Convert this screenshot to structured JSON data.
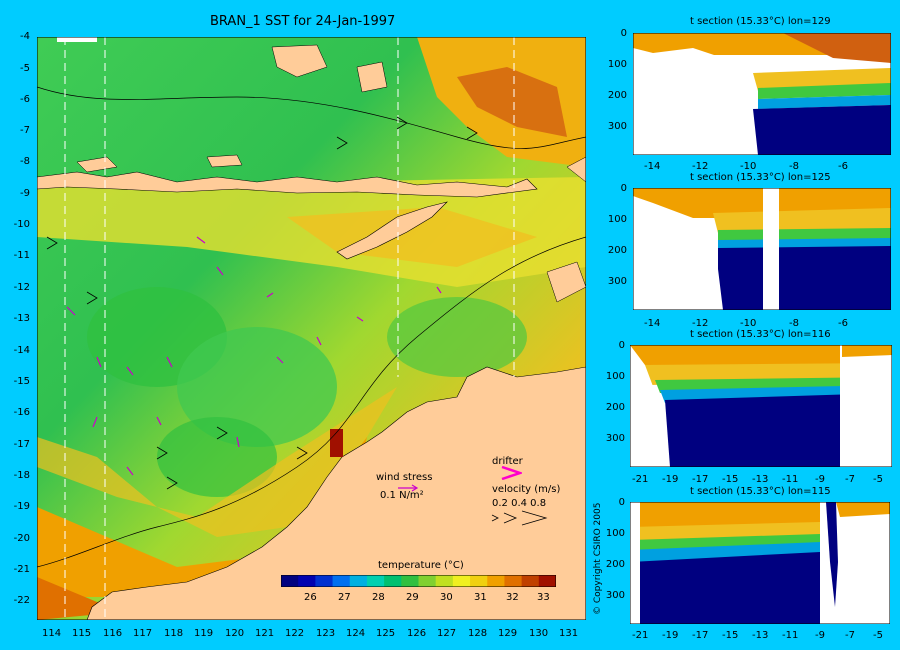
{
  "map": {
    "title": "BRAN_1 SST for 24-Jan-1997",
    "lat_labels": [
      "-4",
      "-5",
      "-6",
      "-7",
      "-8",
      "-9",
      "-10",
      "-11",
      "-12",
      "-13",
      "-14",
      "-15",
      "-16",
      "-17",
      "-18",
      "-19",
      "-20",
      "-21",
      "-22"
    ],
    "lon_labels": [
      "114",
      "115",
      "116",
      "117",
      "118",
      "119",
      "120",
      "121",
      "122",
      "123",
      "124",
      "125",
      "126",
      "127",
      "128",
      "129",
      "130",
      "131"
    ],
    "colorbar": {
      "title": "temperature (°C)",
      "ticks": [
        "26",
        "27",
        "28",
        "29",
        "30",
        "31",
        "32",
        "33"
      ],
      "colors": [
        "#000080",
        "#0000b0",
        "#0030d0",
        "#0070f0",
        "#00b0e0",
        "#00d0b0",
        "#00c070",
        "#30c040",
        "#80d030",
        "#c0e020",
        "#f0f020",
        "#f0d010",
        "#f0a000",
        "#e07000",
        "#c04000",
        "#a01000"
      ]
    },
    "legend": {
      "wind_stress_label": "wind stress",
      "wind_stress_unit": "0.1 N/m²",
      "drifter_label": "drifter",
      "velocity_label": "velocity (m/s)",
      "velocity_values": "0.2 0.4 0.8"
    },
    "colors": {
      "land": "#ffcc99",
      "background": "#00ccff",
      "vectors": "#cc00cc"
    }
  },
  "sections": [
    {
      "title": "t section (15.33°C) lon=129",
      "x_ticks": [
        "-14",
        "-12",
        "-10",
        "-8",
        "-6"
      ],
      "y_ticks": [
        "0",
        "100",
        "200",
        "300"
      ]
    },
    {
      "title": "t section (15.33°C) lon=125",
      "x_ticks": [
        "-14",
        "-12",
        "-10",
        "-8",
        "-6"
      ],
      "y_ticks": [
        "0",
        "100",
        "200",
        "300"
      ]
    },
    {
      "title": "t section (15.33°C) lon=116",
      "x_ticks": [
        "-21",
        "-19",
        "-17",
        "-15",
        "-13",
        "-11",
        "-9",
        "-7",
        "-5"
      ],
      "y_ticks": [
        "0",
        "100",
        "200",
        "300"
      ]
    },
    {
      "title": "t section (15.33°C) lon=115",
      "x_ticks": [
        "-21",
        "-19",
        "-17",
        "-15",
        "-13",
        "-11",
        "-9",
        "-7",
        "-5"
      ],
      "y_ticks": [
        "0",
        "100",
        "200",
        "300"
      ]
    }
  ],
  "copyright": "© Copyright CSIRO 2005"
}
